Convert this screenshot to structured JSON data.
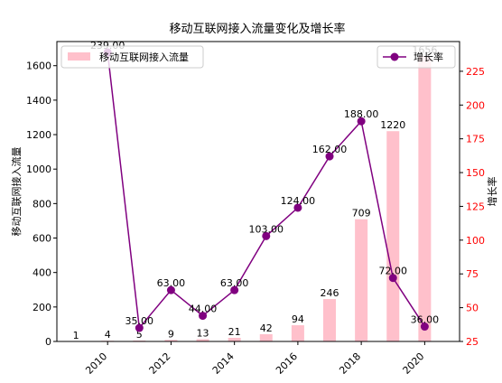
{
  "chart_data": {
    "type": "bar",
    "title": "移动互联网接入流量变化及增长率",
    "ylabel": "移动互联网接入流量",
    "y2label": "增长率",
    "x": [
      2010,
      2011,
      2012,
      2013,
      2014,
      2015,
      2016,
      2017,
      2018,
      2019,
      2020
    ],
    "xticks": [
      2010,
      2012,
      2014,
      2016,
      2018,
      2020
    ],
    "ylim": [
      0,
      1740
    ],
    "yticks": [
      0,
      200,
      400,
      600,
      800,
      1000,
      1200,
      1400,
      1600
    ],
    "y2lim": [
      25,
      247
    ],
    "y2ticks": [
      25,
      50,
      75,
      100,
      125,
      150,
      175,
      200,
      225
    ],
    "bar_series": {
      "name": "移动互联网接入流量",
      "color": "#ffc0cb",
      "values": [
        1,
        4,
        5,
        9,
        13,
        21,
        42,
        94,
        246,
        709,
        1220,
        1656
      ],
      "x": [
        2009,
        2010,
        2011,
        2012,
        2013,
        2014,
        2015,
        2016,
        2017,
        2018,
        2019,
        2020
      ],
      "labels": [
        "1",
        "4",
        "5",
        "9",
        "13",
        "21",
        "42",
        "94",
        "246",
        "709",
        "1220",
        "1656"
      ]
    },
    "line_series": {
      "name": "增长率",
      "color": "#800080",
      "x": [
        2010,
        2011,
        2012,
        2013,
        2014,
        2015,
        2016,
        2017,
        2018,
        2019,
        2020
      ],
      "values": [
        239,
        35,
        63,
        44,
        63,
        103,
        124,
        162,
        188,
        72,
        36
      ],
      "labels": [
        "239.00",
        "35.00",
        "63.00",
        "44.00",
        "63.00",
        "103.00",
        "124.00",
        "162.00",
        "188.00",
        "72.00",
        "36.00"
      ]
    },
    "legend_bar_position": "top-left",
    "legend_line_position": "top-right",
    "grid": false
  }
}
